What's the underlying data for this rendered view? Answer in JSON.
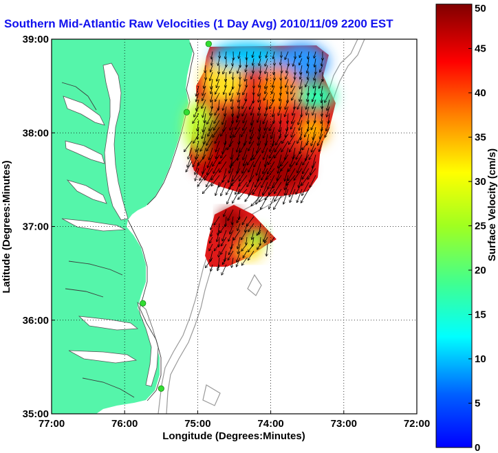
{
  "chart_data": {
    "type": "heatmap",
    "title": "Southern Mid-Atlantic Raw Velocities (1 Day Avg) 2010/11/09 2200 EST",
    "xlabel": "Longitude (Degrees:Minutes)",
    "ylabel": "Latitude (Degrees:Minutes)",
    "xlim": [
      -77,
      -72
    ],
    "ylim": [
      35,
      39
    ],
    "x_ticks": [
      {
        "value": -77,
        "label": "77:00"
      },
      {
        "value": -76,
        "label": "76:00"
      },
      {
        "value": -75,
        "label": "75:00"
      },
      {
        "value": -74,
        "label": "74:00"
      },
      {
        "value": -73,
        "label": "73:00"
      },
      {
        "value": -72,
        "label": "72:00"
      }
    ],
    "y_ticks": [
      {
        "value": 35,
        "label": "35:00"
      },
      {
        "value": 36,
        "label": "36:00"
      },
      {
        "value": 37,
        "label": "37:00"
      },
      {
        "value": 38,
        "label": "38:00"
      },
      {
        "value": 39,
        "label": "39:00"
      }
    ],
    "grid": "dotted",
    "colorbar": {
      "label": "Surface Velocity (cm/s)",
      "range": [
        0,
        50
      ],
      "ticks": [
        {
          "value": 0,
          "label": "0"
        },
        {
          "value": 5,
          "label": "5"
        },
        {
          "value": 10,
          "label": "10"
        },
        {
          "value": 15,
          "label": "15"
        },
        {
          "value": 20,
          "label": "20"
        },
        {
          "value": 25,
          "label": "25"
        },
        {
          "value": 30,
          "label": "30"
        },
        {
          "value": 35,
          "label": "35"
        },
        {
          "value": 40,
          "label": "40"
        },
        {
          "value": 45,
          "label": "45"
        },
        {
          "value": 50,
          "label": "50"
        }
      ],
      "colormap": "jet"
    },
    "velocity_fields": [
      {
        "name": "northern field",
        "lon_range": [
          -74.9,
          -73.1
        ],
        "lat_range": [
          37.35,
          38.95
        ],
        "approx_speed_cm_s": "10–50, highest (~45–50) in the south-central part",
        "flow_direction": "generally southward / south-southwest"
      },
      {
        "name": "southern field",
        "lon_range": [
          -74.85,
          -73.95
        ],
        "lat_range": [
          36.75,
          37.25
        ],
        "approx_speed_cm_s": "20–50, highest (~45–50) near 74.6W 37.1N",
        "flow_direction": "southward / southwestward"
      }
    ],
    "radar_sites": [
      {
        "lon": -74.85,
        "lat": 38.95
      },
      {
        "lon": -75.15,
        "lat": 38.22
      },
      {
        "lon": -75.75,
        "lat": 36.18
      },
      {
        "lon": -75.5,
        "lat": 35.27
      }
    ],
    "land_color": "#55f5aa",
    "water_color": "#ffffff",
    "site_marker_color": "#33dd33",
    "title_color": "#1010ee"
  }
}
